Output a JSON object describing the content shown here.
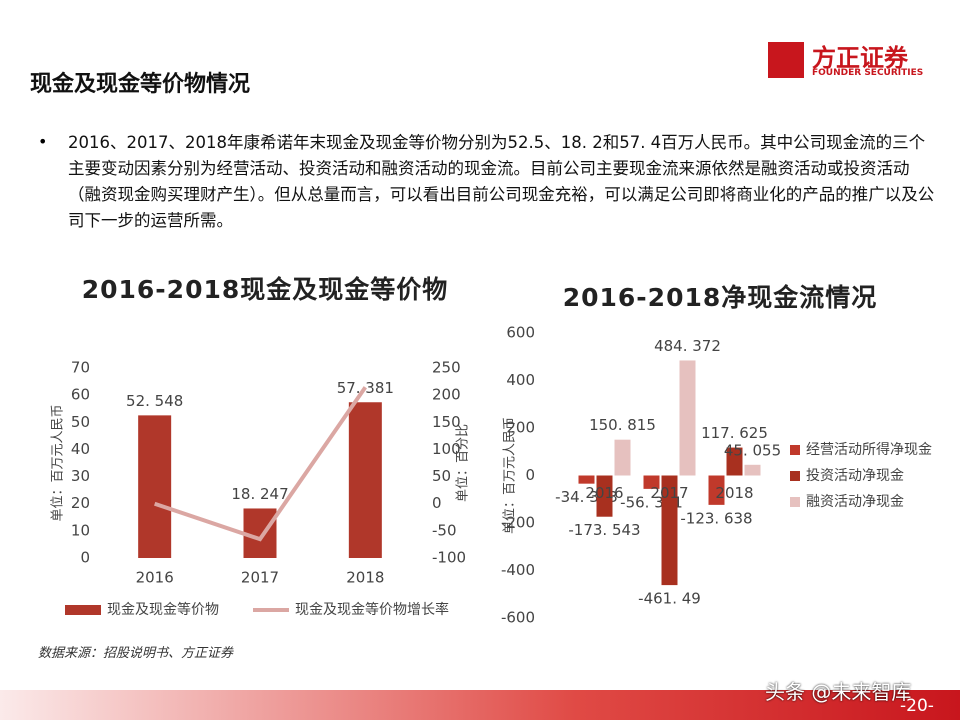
{
  "header": {
    "title": "现金及现金等价物情况"
  },
  "logo": {
    "name": "方正证券",
    "sub": "FOUNDER SECURITIES"
  },
  "bullet": "2016、2017、2018年康希诺年末现金及现金等价物分别为52.5、18. 2和57. 4百万人民币。其中公司现金流的三个主要变动因素分别为经营活动、投资活动和融资活动的现金流。目前公司主要现金流来源依然是融资活动或投资活动（融资现金购买理财产生）。但从总量而言，可以看出目前公司现金充裕，可以满足公司即将商业化的产品的推广以及公司下一步的运营所需。",
  "chart_data": [
    {
      "type": "bar",
      "title": "2016-2018现金及现金等价物",
      "y_label": "单位：百万元人民币",
      "y2_label": "单位：百分比",
      "categories": [
        "2016",
        "2017",
        "2018"
      ],
      "series": [
        {
          "name": "现金及现金等价物",
          "color": "#b0372a",
          "values": [
            52.548,
            18.247,
            57.381
          ],
          "value_labels": [
            "52. 548",
            "18. 247",
            "57. 381"
          ]
        },
        {
          "name": "现金及现金等价物增长率",
          "color": "#dba7a3",
          "type": "line",
          "axis": "y2",
          "values": [
            0,
            -65.3,
            214.5
          ]
        }
      ],
      "ylim": [
        0,
        70
      ],
      "yticks": [
        0,
        10,
        20,
        30,
        40,
        50,
        60,
        70
      ],
      "y2lim": [
        -100,
        250
      ],
      "y2ticks": [
        -100,
        -50,
        0,
        50,
        100,
        150,
        200,
        250
      ],
      "legend": "bottom"
    },
    {
      "type": "bar",
      "title": "2016-2018净现金流情况",
      "y_label": "单位：百万元人民币",
      "categories": [
        "2016",
        "2017",
        "2018"
      ],
      "series": [
        {
          "name": "经营活动所得净现金",
          "color": "#c0392b",
          "values": [
            -34.383,
            -56.301,
            -123.638
          ],
          "value_labels": [
            "-34. 383",
            "-56. 301",
            "-123. 638"
          ]
        },
        {
          "name": "投资活动净现金",
          "color": "#a8301f",
          "values": [
            -173.543,
            -461.49,
            117.625
          ],
          "value_labels": [
            "-173. 543",
            "-461. 49",
            "117. 625"
          ]
        },
        {
          "name": "融资活动净现金",
          "color": "#e6c1bf",
          "values": [
            150.815,
            484.372,
            45.055
          ],
          "value_labels": [
            "150. 815",
            "484. 372",
            "45. 055"
          ]
        }
      ],
      "ylim": [
        -600,
        600
      ],
      "yticks": [
        -600,
        -400,
        -200,
        0,
        200,
        400,
        600
      ],
      "legend": "right"
    }
  ],
  "source": "数据来源：招股说明书、方正证券",
  "footer": {
    "page": "-20-",
    "watermark": "头条 @未来智库"
  }
}
